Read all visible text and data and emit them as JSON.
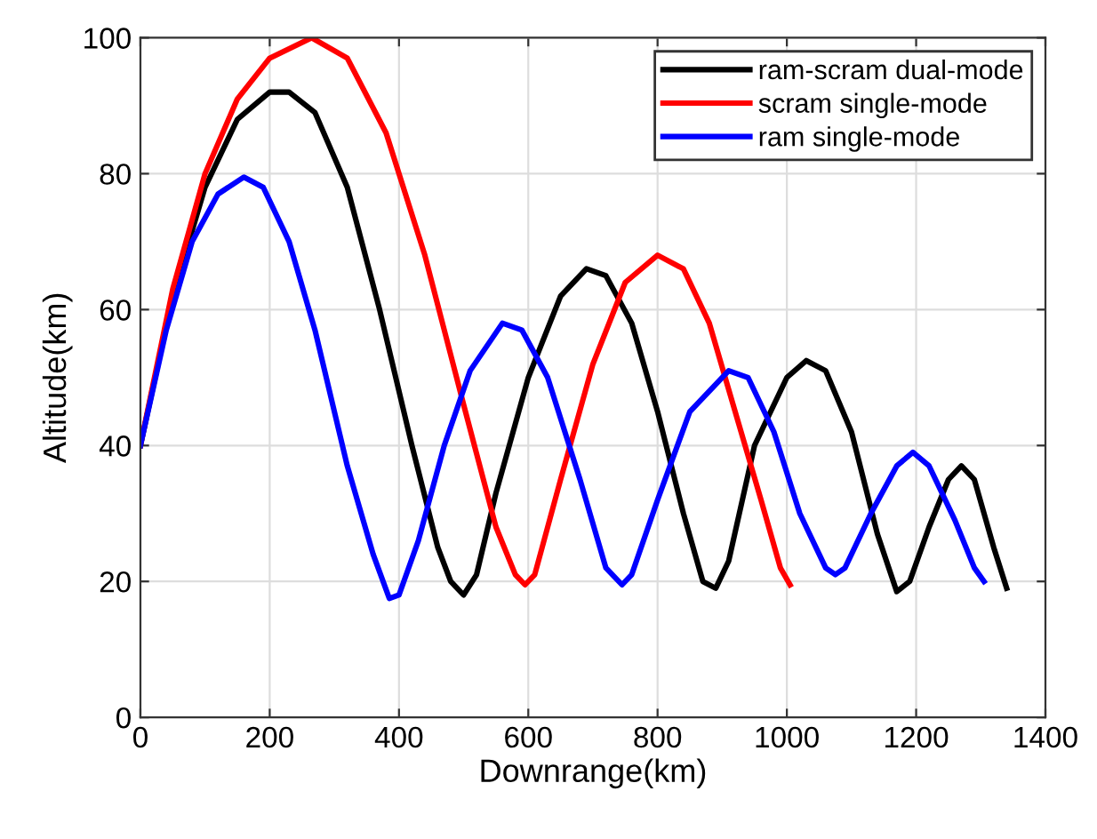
{
  "chart_data": {
    "type": "line",
    "xlabel": "Downrange(km)",
    "ylabel": "Altitude(km)",
    "xlim": [
      0,
      1400
    ],
    "ylim": [
      0,
      100
    ],
    "xticks": [
      0,
      200,
      400,
      600,
      800,
      1000,
      1200,
      1400
    ],
    "yticks": [
      0,
      20,
      40,
      60,
      80,
      100
    ],
    "grid": true,
    "legend": "top right",
    "marker": "none",
    "line_style": "solid",
    "series": [
      {
        "name": "ram-scram dual-mode",
        "color": "#000000",
        "x": [
          0,
          50,
          100,
          150,
          200,
          230,
          270,
          320,
          370,
          420,
          460,
          480,
          500,
          520,
          550,
          600,
          650,
          690,
          720,
          760,
          800,
          840,
          870,
          890,
          910,
          950,
          1000,
          1030,
          1060,
          1100,
          1140,
          1170,
          1190,
          1220,
          1250,
          1270,
          1290,
          1320,
          1340
        ],
        "values": [
          40,
          62,
          78,
          88,
          92,
          92,
          89,
          78,
          60,
          40,
          25,
          20,
          18,
          21,
          33,
          50,
          62,
          66,
          65,
          58,
          45,
          30,
          20,
          19,
          23,
          40,
          50,
          52.5,
          51,
          42,
          27,
          18.5,
          20,
          28,
          35,
          37,
          35,
          25,
          19
        ]
      },
      {
        "name": "scram single-mode",
        "color": "#ff0000",
        "x": [
          0,
          50,
          100,
          150,
          200,
          265,
          320,
          380,
          440,
          500,
          550,
          580,
          595,
          610,
          650,
          700,
          750,
          800,
          840,
          880,
          920,
          960,
          990,
          1005
        ],
        "values": [
          40,
          63,
          80,
          91,
          97,
          100,
          97,
          86,
          68,
          46,
          28,
          21,
          19.5,
          21,
          35,
          52,
          64,
          68,
          66,
          58,
          45,
          32,
          22,
          19.5
        ]
      },
      {
        "name": "ram single-mode",
        "color": "#0000ff",
        "x": [
          0,
          40,
          80,
          120,
          160,
          190,
          230,
          270,
          320,
          360,
          385,
          400,
          430,
          470,
          510,
          560,
          590,
          630,
          680,
          720,
          745,
          760,
          800,
          850,
          910,
          940,
          980,
          1020,
          1060,
          1075,
          1090,
          1130,
          1170,
          1195,
          1220,
          1260,
          1290,
          1305
        ],
        "values": [
          40,
          57,
          70,
          77,
          79.5,
          78,
          70,
          57,
          37,
          24,
          17.5,
          18,
          26,
          40,
          51,
          58,
          57,
          50,
          35,
          22,
          19.5,
          21,
          32,
          45,
          51,
          50,
          42,
          30,
          22,
          21,
          22,
          30,
          37,
          39,
          37,
          29,
          22,
          20
        ]
      }
    ]
  }
}
